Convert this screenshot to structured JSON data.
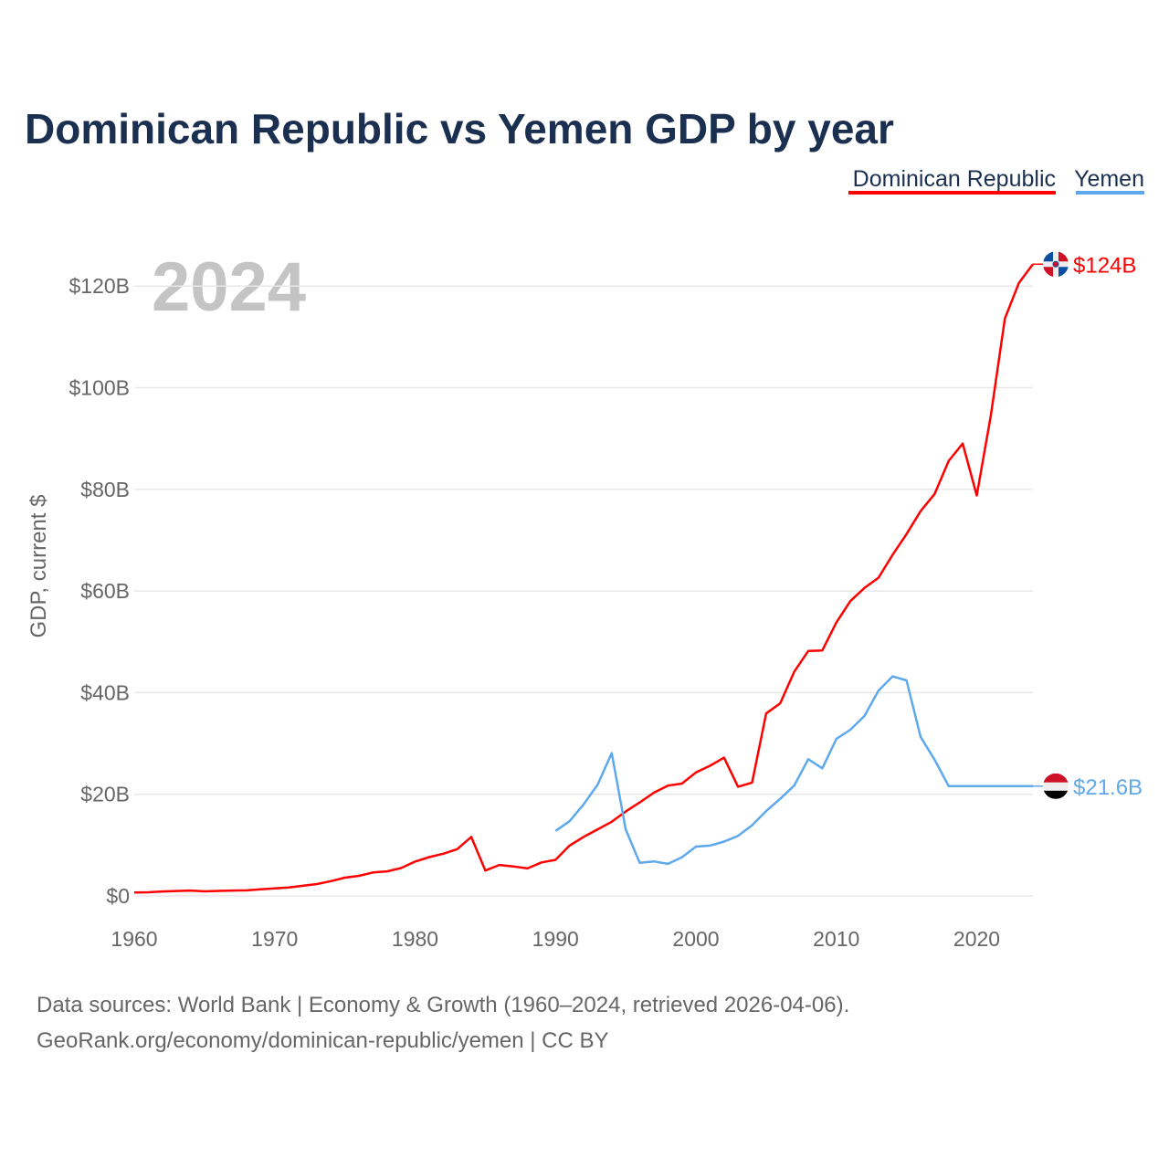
{
  "chart_data": {
    "type": "line",
    "title": "Dominican Republic vs Yemen GDP by year",
    "ylabel": "GDP, current $",
    "xlabel": "",
    "current_year": "2024",
    "xlim": [
      1960,
      2024
    ],
    "ylim": [
      0,
      125
    ],
    "x_ticks": [
      1960,
      1970,
      1980,
      1990,
      2000,
      2010,
      2020
    ],
    "x_tick_labels": [
      "1960",
      "1970",
      "1980",
      "1990",
      "2000",
      "2010",
      "2020"
    ],
    "y_ticks": [
      0,
      20,
      40,
      60,
      80,
      100,
      120
    ],
    "y_tick_labels": [
      "$0",
      "$20B",
      "$40B",
      "$60B",
      "$80B",
      "$100B",
      "$120B"
    ],
    "grid": true,
    "legend_position": "top-right",
    "units": "billions USD",
    "series": [
      {
        "name": "Dominican Republic",
        "color": "#ff0000",
        "end_label": "$124B",
        "start_year": 1960,
        "values": [
          0.67,
          0.72,
          0.88,
          0.97,
          1.06,
          0.89,
          0.99,
          1.06,
          1.1,
          1.31,
          1.49,
          1.67,
          1.99,
          2.34,
          2.92,
          3.6,
          3.95,
          4.61,
          4.83,
          5.48,
          6.76,
          7.63,
          8.31,
          9.2,
          11.6,
          5.0,
          6.1,
          5.8,
          5.4,
          6.6,
          7.1,
          9.9,
          11.6,
          13.1,
          14.6,
          16.6,
          18.4,
          20.3,
          21.7,
          22.1,
          24.3,
          25.6,
          27.2,
          21.5,
          22.3,
          35.9,
          37.9,
          44.1,
          48.2,
          48.3,
          53.8,
          58.0,
          60.6,
          62.6,
          67.1,
          71.2,
          75.7,
          79.1,
          85.6,
          89.0,
          78.8,
          94.5,
          113.6,
          120.6,
          124.3
        ]
      },
      {
        "name": "Yemen",
        "color": "#5ea8ec",
        "end_label": "$21.6B",
        "start_year": 1990,
        "values": [
          12.8,
          14.7,
          18.0,
          21.9,
          28.1,
          13.1,
          6.5,
          6.8,
          6.3,
          7.6,
          9.7,
          9.9,
          10.7,
          11.8,
          13.9,
          16.7,
          19.1,
          21.7,
          26.9,
          25.1,
          30.9,
          32.7,
          35.4,
          40.4,
          43.2,
          42.4,
          31.3,
          26.8,
          21.6,
          21.6,
          21.6,
          21.6,
          21.6,
          21.6,
          21.6
        ]
      }
    ]
  },
  "footer": {
    "line1": "Data sources: World Bank | Economy & Growth (1960–2024, retrieved 2026-04-06).",
    "line2": "GeoRank.org/economy/dominican-republic/yemen | CC BY"
  },
  "icons": {
    "dominican-republic": "dominican-republic-flag-icon",
    "yemen": "yemen-flag-icon"
  }
}
